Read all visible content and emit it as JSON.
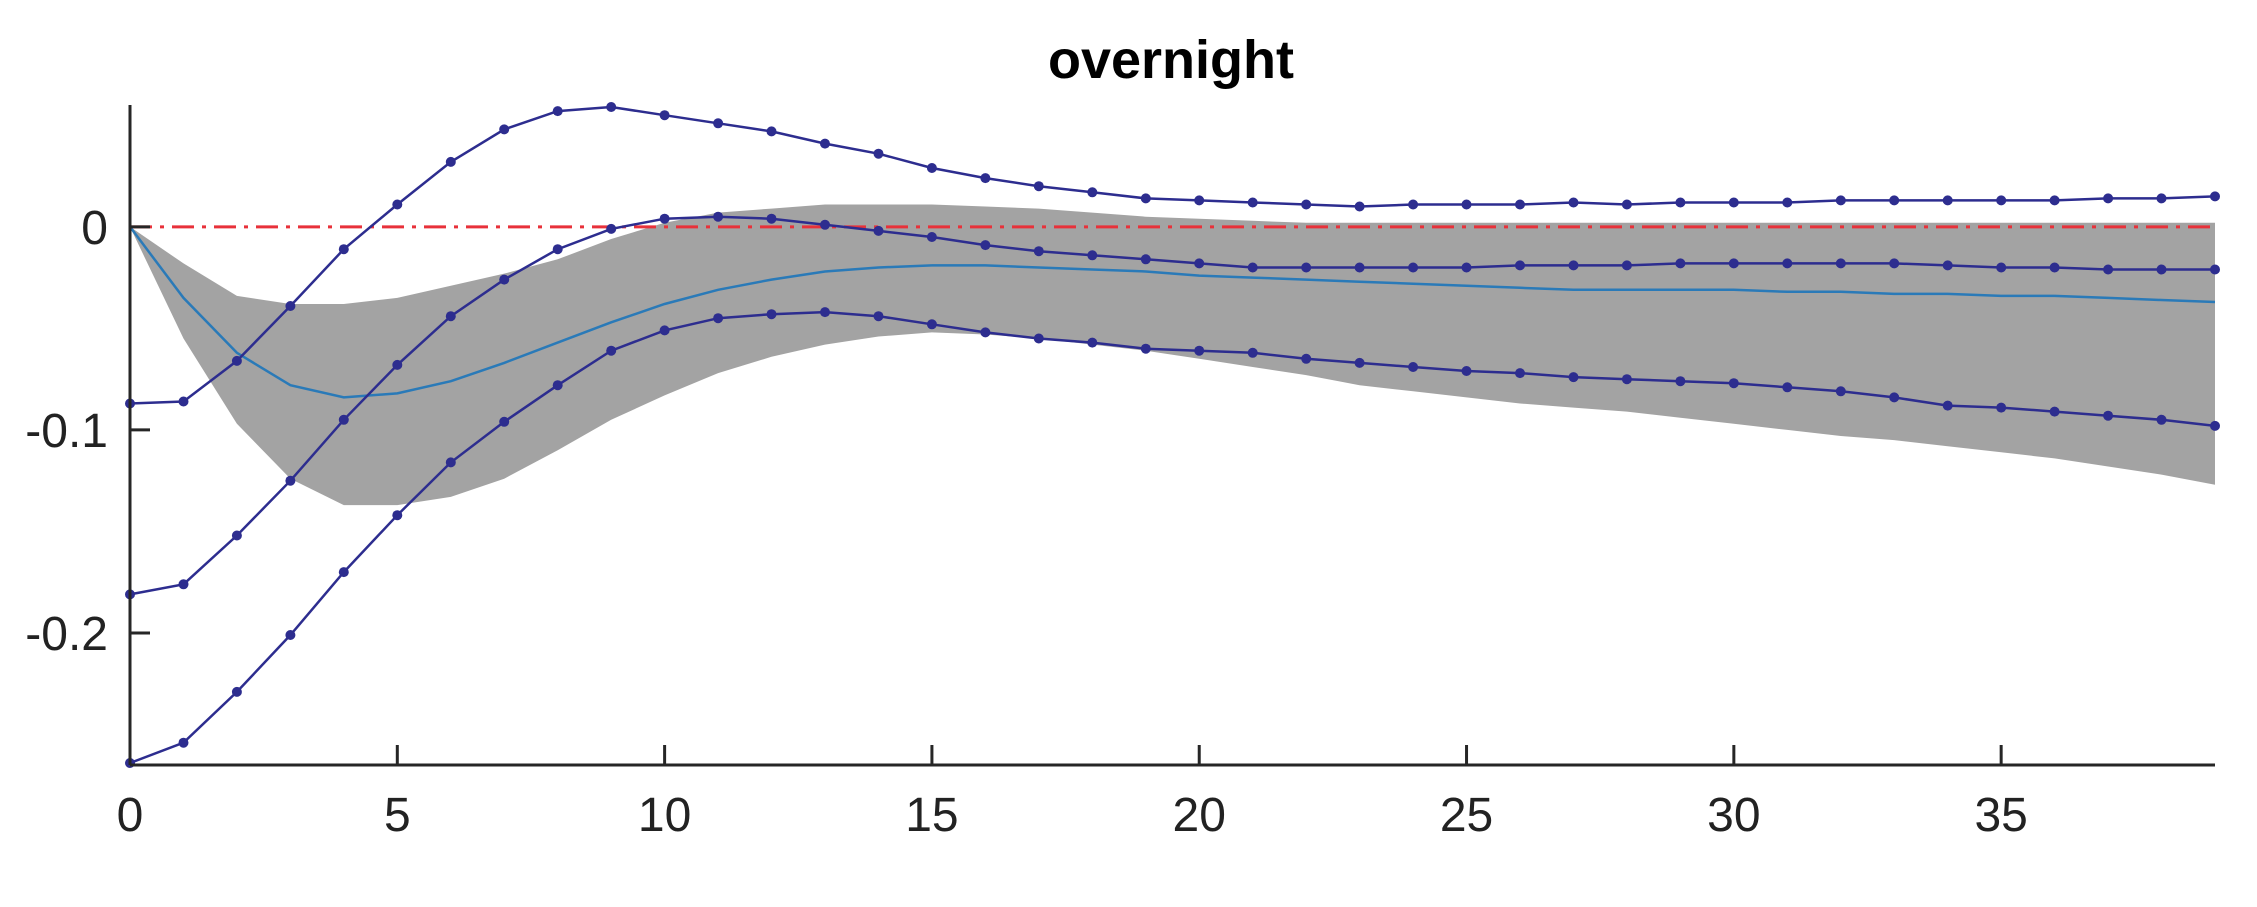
{
  "chart_data": {
    "type": "line",
    "title": "overnight",
    "xlabel": "",
    "ylabel": "",
    "xlim": [
      0,
      39
    ],
    "ylim": [
      -0.265,
      0.06
    ],
    "xticks": [
      0,
      5,
      10,
      15,
      20,
      25,
      30,
      35
    ],
    "yticks": [
      0,
      -0.1,
      -0.2
    ],
    "ytick_labels": [
      "0",
      "-0.1",
      "-0.2"
    ],
    "grid": false,
    "legend": "none",
    "zero_line": {
      "y": 0,
      "style": "dash-dot",
      "color": "#e8313a"
    },
    "band": {
      "color": "#a3a3a3",
      "x": [
        0,
        1,
        2,
        3,
        4,
        5,
        6,
        7,
        8,
        9,
        10,
        11,
        12,
        13,
        14,
        15,
        16,
        17,
        18,
        19,
        20,
        21,
        22,
        23,
        24,
        25,
        26,
        27,
        28,
        29,
        30,
        31,
        32,
        33,
        34,
        35,
        36,
        37,
        38,
        39
      ],
      "upper": [
        0,
        -0.018,
        -0.034,
        -0.038,
        -0.038,
        -0.035,
        -0.029,
        -0.023,
        -0.016,
        -0.006,
        0.002,
        0.007,
        0.009,
        0.011,
        0.011,
        0.011,
        0.01,
        0.009,
        0.007,
        0.005,
        0.004,
        0.003,
        0.002,
        0.002,
        0.002,
        0.002,
        0.002,
        0.002,
        0.002,
        0.002,
        0.002,
        0.002,
        0.002,
        0.002,
        0.002,
        0.002,
        0.002,
        0.002,
        0.002,
        0.002
      ],
      "lower": [
        0,
        -0.055,
        -0.097,
        -0.124,
        -0.137,
        -0.137,
        -0.133,
        -0.124,
        -0.11,
        -0.095,
        -0.083,
        -0.072,
        -0.064,
        -0.058,
        -0.054,
        -0.052,
        -0.053,
        -0.055,
        -0.058,
        -0.061,
        -0.065,
        -0.069,
        -0.073,
        -0.078,
        -0.081,
        -0.084,
        -0.087,
        -0.089,
        -0.091,
        -0.094,
        -0.097,
        -0.1,
        -0.103,
        -0.105,
        -0.108,
        -0.111,
        -0.114,
        -0.118,
        -0.122,
        -0.127
      ]
    },
    "median": {
      "color": "#2a7ab8",
      "x": [
        0,
        1,
        2,
        3,
        4,
        5,
        6,
        7,
        8,
        9,
        10,
        11,
        12,
        13,
        14,
        15,
        16,
        17,
        18,
        19,
        20,
        21,
        22,
        23,
        24,
        25,
        26,
        27,
        28,
        29,
        30,
        31,
        32,
        33,
        34,
        35,
        36,
        37,
        38,
        39
      ],
      "values": [
        0,
        -0.035,
        -0.062,
        -0.078,
        -0.084,
        -0.082,
        -0.076,
        -0.067,
        -0.057,
        -0.047,
        -0.038,
        -0.031,
        -0.026,
        -0.022,
        -0.02,
        -0.019,
        -0.019,
        -0.02,
        -0.021,
        -0.022,
        -0.024,
        -0.025,
        -0.026,
        -0.027,
        -0.028,
        -0.029,
        -0.03,
        -0.031,
        -0.031,
        -0.031,
        -0.031,
        -0.032,
        -0.032,
        -0.033,
        -0.033,
        -0.034,
        -0.034,
        -0.035,
        -0.036,
        -0.037
      ]
    },
    "series": [
      {
        "color": "#2d2d8f",
        "x": [
          0,
          1,
          2,
          3,
          4,
          5,
          6,
          7,
          8,
          9,
          10,
          11,
          12,
          13,
          14,
          15,
          16,
          17,
          18,
          19,
          20,
          21,
          22,
          23,
          24,
          25,
          26,
          27,
          28,
          29,
          30,
          31,
          32,
          33,
          34,
          35,
          36,
          37,
          38,
          39
        ],
        "values": [
          -0.087,
          -0.086,
          -0.066,
          -0.039,
          -0.011,
          0.011,
          0.032,
          0.048,
          0.057,
          0.059,
          0.055,
          0.051,
          0.047,
          0.041,
          0.036,
          0.029,
          0.024,
          0.02,
          0.017,
          0.014,
          0.013,
          0.012,
          0.011,
          0.01,
          0.011,
          0.011,
          0.011,
          0.012,
          0.011,
          0.012,
          0.012,
          0.012,
          0.013,
          0.013,
          0.013,
          0.013,
          0.013,
          0.014,
          0.014,
          0.015
        ]
      },
      {
        "color": "#2d2d8f",
        "x": [
          0,
          1,
          2,
          3,
          4,
          5,
          6,
          7,
          8,
          9,
          10,
          11,
          12,
          13,
          14,
          15,
          16,
          17,
          18,
          19,
          20,
          21,
          22,
          23,
          24,
          25,
          26,
          27,
          28,
          29,
          30,
          31,
          32,
          33,
          34,
          35,
          36,
          37,
          38,
          39
        ],
        "values": [
          -0.181,
          -0.176,
          -0.152,
          -0.125,
          -0.095,
          -0.068,
          -0.044,
          -0.026,
          -0.011,
          -0.001,
          0.004,
          0.005,
          0.004,
          0.001,
          -0.002,
          -0.005,
          -0.009,
          -0.012,
          -0.014,
          -0.016,
          -0.018,
          -0.02,
          -0.02,
          -0.02,
          -0.02,
          -0.02,
          -0.019,
          -0.019,
          -0.019,
          -0.018,
          -0.018,
          -0.018,
          -0.018,
          -0.018,
          -0.019,
          -0.02,
          -0.02,
          -0.021,
          -0.021,
          -0.021
        ]
      },
      {
        "color": "#2d2d8f",
        "x": [
          0,
          1,
          2,
          3,
          4,
          5,
          6,
          7,
          8,
          9,
          10,
          11,
          12,
          13,
          14,
          15,
          16,
          17,
          18,
          19,
          20,
          21,
          22,
          23,
          24,
          25,
          26,
          27,
          28,
          29,
          30,
          31,
          32,
          33,
          34,
          35,
          36,
          37,
          38,
          39
        ],
        "values": [
          -0.264,
          -0.254,
          -0.229,
          -0.201,
          -0.17,
          -0.142,
          -0.116,
          -0.096,
          -0.078,
          -0.061,
          -0.051,
          -0.045,
          -0.043,
          -0.042,
          -0.044,
          -0.048,
          -0.052,
          -0.055,
          -0.057,
          -0.06,
          -0.061,
          -0.062,
          -0.065,
          -0.067,
          -0.069,
          -0.071,
          -0.072,
          -0.074,
          -0.075,
          -0.076,
          -0.077,
          -0.079,
          -0.081,
          -0.084,
          -0.088,
          -0.089,
          -0.091,
          -0.093,
          -0.095,
          -0.098
        ]
      }
    ]
  }
}
